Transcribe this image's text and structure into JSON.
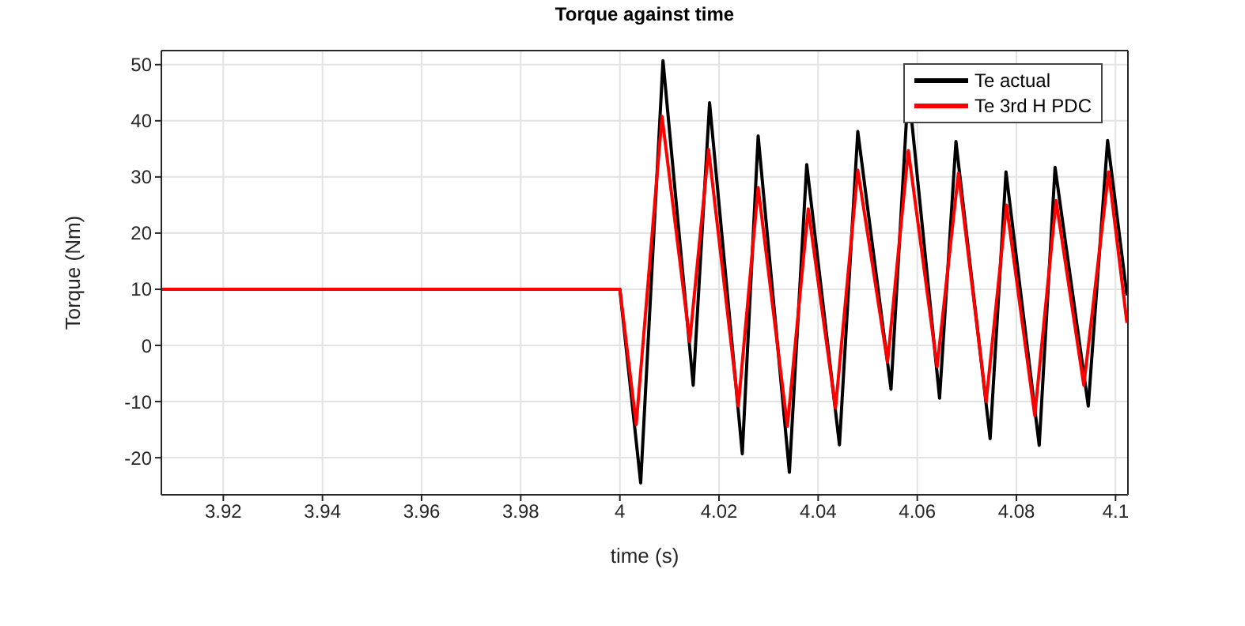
{
  "chart_data": {
    "type": "line",
    "title": "Torque against time",
    "xlabel": "time (s)",
    "ylabel": "Torque (Nm)",
    "xlim": [
      3.9075,
      4.1025
    ],
    "xticks": [
      3.92,
      3.94,
      3.96,
      3.98,
      4,
      4.02,
      4.04,
      4.06,
      4.08,
      4.1
    ],
    "ylim": [
      -26.6,
      52.5
    ],
    "yticks": [
      -20,
      -10,
      0,
      10,
      20,
      30,
      40,
      50
    ],
    "grid": true,
    "legend": "top right",
    "marker": "none",
    "line_style": "solid",
    "series": [
      {
        "name": "Te actual",
        "color": "#000000",
        "x": [
          3.9075,
          4.0,
          4.0042,
          4.0087,
          4.0148,
          4.0181,
          4.0247,
          4.0279,
          4.0342,
          4.0377,
          4.0443,
          4.048,
          4.0547,
          4.0582,
          4.0645,
          4.0678,
          4.0747,
          4.0779,
          4.0846,
          4.0878,
          4.0945,
          4.0984,
          4.1023
        ],
        "values": [
          10,
          10,
          -24.5,
          50.7,
          -7.1,
          43.2,
          -19.3,
          37.3,
          -22.6,
          32.2,
          -17.7,
          38.1,
          -7.8,
          46,
          -9.4,
          36.3,
          -16.6,
          30.9,
          -17.8,
          31.7,
          -10.8,
          36.5,
          8.9
        ]
      },
      {
        "name": "Te 3rd H PDC",
        "color": "#ff0000",
        "x": [
          3.9075,
          4.0,
          4.0033,
          4.0085,
          4.0141,
          4.0179,
          4.0239,
          4.0279,
          4.0338,
          4.038,
          4.0435,
          4.048,
          4.054,
          4.0582,
          4.064,
          4.0683,
          4.0739,
          4.078,
          4.0837,
          4.088,
          4.0936,
          4.0986,
          4.1023
        ],
        "values": [
          10,
          10,
          -14.1,
          40.8,
          0.7,
          34.9,
          -10.8,
          28.1,
          -14.4,
          24.3,
          -11.2,
          31.2,
          -3,
          34.7,
          -3.8,
          30.7,
          -10,
          25,
          -12.5,
          25.8,
          -7.1,
          30.9,
          4
        ]
      }
    ]
  }
}
